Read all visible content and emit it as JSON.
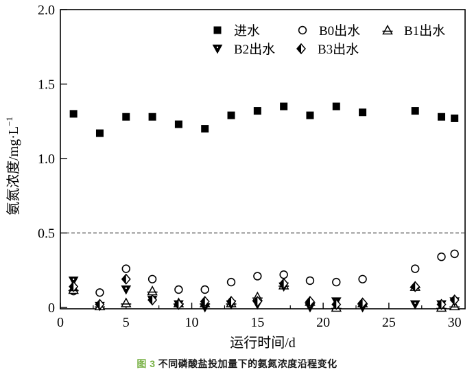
{
  "figure": {
    "caption": {
      "prefix": "图 3",
      "title": "不同磷酸盐投加量下的氨氮浓度沿程变化",
      "prefix_color": "#76b043"
    }
  },
  "chart_data": {
    "type": "scatter",
    "title": "",
    "xlabel": "运行时间/d",
    "ylabel_base": "氨氮浓度/mg·L",
    "ylabel_exp": "−1",
    "xlim": [
      0,
      30.8
    ],
    "ylim": [
      0,
      2.0
    ],
    "xticks": [
      0,
      5,
      10,
      15,
      20,
      25,
      30
    ],
    "xminor_step": 2.5,
    "yticks": [
      0,
      0.5,
      1.0,
      1.5,
      2.0
    ],
    "ytick_labels": [
      "0",
      "0.5",
      "1.0",
      "1.5",
      "2.0"
    ],
    "grid": false,
    "reference_line": {
      "y": 0.5,
      "style": "dashed"
    },
    "axis_color": "#000000",
    "marker_color": "#000000",
    "x": [
      1,
      3,
      5,
      7,
      9,
      11,
      13,
      15,
      17,
      19,
      21,
      23,
      27,
      29,
      30
    ],
    "series": [
      {
        "name": "进水",
        "marker": "filled-square",
        "values": [
          1.3,
          1.17,
          1.28,
          1.28,
          1.23,
          1.2,
          1.29,
          1.32,
          1.35,
          1.29,
          1.35,
          1.31,
          1.32,
          1.28,
          1.27
        ]
      },
      {
        "name": "B0出水",
        "marker": "open-circle",
        "values": [
          0.11,
          0.1,
          0.26,
          0.19,
          0.12,
          0.12,
          0.17,
          0.21,
          0.22,
          0.18,
          0.17,
          0.19,
          0.26,
          0.34,
          0.36
        ]
      },
      {
        "name": "B1出水",
        "marker": "open-triangle-up-bar",
        "values": [
          0.12,
          0.01,
          0.03,
          0.11,
          0.03,
          0.03,
          0.03,
          0.07,
          0.15,
          0.04,
          0.0,
          0.03,
          0.14,
          0.0,
          0.01
        ]
      },
      {
        "name": "B2出水",
        "marker": "filled-triangle-down",
        "values": [
          0.18,
          0.01,
          0.12,
          0.05,
          0.02,
          0.0,
          0.02,
          0.02,
          0.14,
          0.0,
          0.04,
          0.0,
          0.02,
          0.02,
          0.04
        ]
      },
      {
        "name": "B3出水",
        "marker": "half-filled-diamond",
        "values": [
          0.14,
          0.02,
          0.19,
          0.05,
          0.02,
          0.04,
          0.04,
          0.04,
          0.16,
          0.04,
          0.02,
          0.03,
          0.14,
          0.02,
          0.05
        ]
      }
    ],
    "legend": {
      "position": "top-inside",
      "rows": [
        [
          "进水",
          "B0出水",
          "B1出水"
        ],
        [
          "B2出水",
          "B3出水"
        ]
      ]
    }
  }
}
